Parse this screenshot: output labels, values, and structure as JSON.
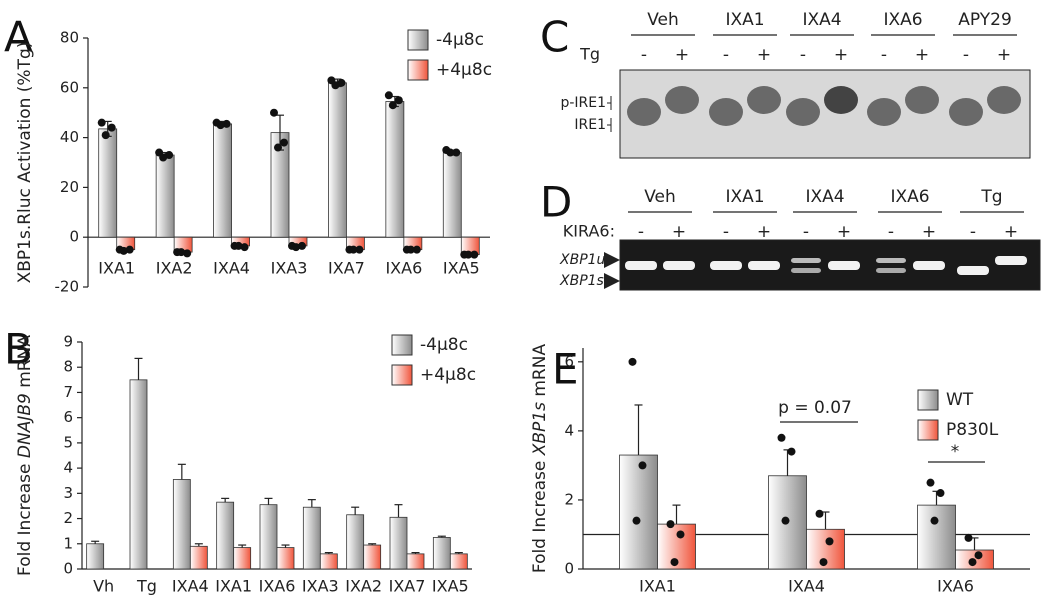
{
  "chart_data": [
    {
      "type": "bar",
      "panel_label": "A",
      "ylabel": [
        "XBP1s.Rluc Activation (%Tg)"
      ],
      "categories": [
        "IXA1",
        "IXA2",
        "IXA4",
        "IXA3",
        "IXA7",
        "IXA6",
        "IXA5"
      ],
      "series": [
        {
          "name": "-4μ8c",
          "color": "#8c8c8c",
          "values": [
            43.5,
            33,
            45.5,
            42,
            62,
            54.5,
            34
          ],
          "errors": [
            3,
            1,
            1,
            7,
            1.5,
            2,
            1
          ],
          "points": [
            [
              46,
              44,
              41
            ],
            [
              34,
              33,
              32
            ],
            [
              46,
              45.5,
              45
            ],
            [
              50,
              38,
              36
            ],
            [
              63,
              62,
              61
            ],
            [
              57,
              55,
              53
            ],
            [
              35,
              34,
              34
            ]
          ]
        },
        {
          "name": "+4μ8c",
          "color": "#f0553c",
          "values": [
            -5,
            -6,
            -3.5,
            -3.5,
            -5,
            -5,
            -7
          ],
          "errors": [
            0.5,
            0.5,
            0.5,
            0.5,
            0.5,
            0.5,
            0.5
          ],
          "points": [
            [
              -5,
              -5,
              -5.5
            ],
            [
              -6,
              -6.5,
              -6
            ],
            [
              -3.5,
              -4,
              -3.5
            ],
            [
              -3.5,
              -3.5,
              -4
            ],
            [
              -5,
              -5,
              -5
            ],
            [
              -5,
              -5,
              -5
            ],
            [
              -7,
              -7,
              -7
            ]
          ]
        }
      ],
      "ylim": [
        -20,
        80
      ],
      "yticks": [
        -20,
        0,
        20,
        40,
        60,
        80
      ],
      "error_bars": "both"
    },
    {
      "type": "bar",
      "panel_label": "B",
      "ylabel": [
        "Fold Increase ",
        "DNAJB9",
        " mRNA"
      ],
      "categories": [
        "Vh",
        "Tg",
        "IXA4",
        "IXA1",
        "IXA6",
        "IXA3",
        "IXA2",
        "IXA7",
        "IXA5"
      ],
      "series": [
        {
          "name": "-4μ8c",
          "color": "#8c8c8c",
          "values": [
            1,
            7.5,
            3.55,
            2.65,
            2.55,
            2.45,
            2.15,
            2.05,
            1.25
          ],
          "errors": [
            0.1,
            0.85,
            0.6,
            0.15,
            0.25,
            0.3,
            0.3,
            0.5,
            0.05
          ]
        },
        {
          "name": "+4μ8c",
          "color": "#f0553c",
          "values": [
            null,
            null,
            0.9,
            0.85,
            0.85,
            0.6,
            0.95,
            0.6,
            0.6
          ],
          "errors": [
            null,
            null,
            0.1,
            0.1,
            0.1,
            0.05,
            0.05,
            0.05,
            0.05
          ]
        }
      ],
      "ylim": [
        0,
        9
      ],
      "yticks": [
        0,
        1,
        2,
        3,
        4,
        5,
        6,
        7,
        8,
        9
      ],
      "error_bars": "upper"
    },
    {
      "type": "bar",
      "panel_label": "E",
      "ylabel": [
        "Fold Increase ",
        "XBP1s",
        " mRNA"
      ],
      "categories": [
        "IXA1",
        "IXA4",
        "IXA6"
      ],
      "series": [
        {
          "name": "WT",
          "color": "#8c8c8c",
          "values": [
            3.3,
            2.7,
            1.85
          ],
          "errors": [
            1.45,
            0.75,
            0.4
          ],
          "points": [
            [
              6,
              3,
              1.4
            ],
            [
              3.8,
              3.4,
              1.4
            ],
            [
              2.5,
              2.2,
              1.4
            ]
          ]
        },
        {
          "name": "P830L",
          "color": "#f0553c",
          "values": [
            1.3,
            1.15,
            0.55
          ],
          "errors": [
            0.55,
            0.5,
            0.35
          ],
          "points": [
            [
              1.3,
              1,
              0.2
            ],
            [
              1.6,
              0.8,
              0.2
            ],
            [
              0.9,
              0.4,
              0.2
            ]
          ]
        }
      ],
      "ylim": [
        0,
        6.4
      ],
      "yticks": [
        0,
        2,
        4,
        6
      ],
      "error_bars": "upper",
      "reference_line": 1,
      "annotations": [
        "p = 0.07",
        "*"
      ]
    }
  ],
  "gels": [
    {
      "panel_label": "C",
      "treatment": "Tg",
      "groups": [
        "Veh",
        "IXA1",
        "IXA4",
        "IXA6",
        "APY29"
      ],
      "signs": [
        "-",
        "+"
      ],
      "band_labels": [
        "p-IRE1",
        "IRE1"
      ]
    },
    {
      "panel_label": "D",
      "treatment": "KIRA6:",
      "groups": [
        "Veh",
        "IXA1",
        "IXA4",
        "IXA6",
        "Tg"
      ],
      "signs": [
        "-",
        "+"
      ],
      "band_labels": [
        "XBP1u",
        "XBP1s"
      ]
    }
  ]
}
